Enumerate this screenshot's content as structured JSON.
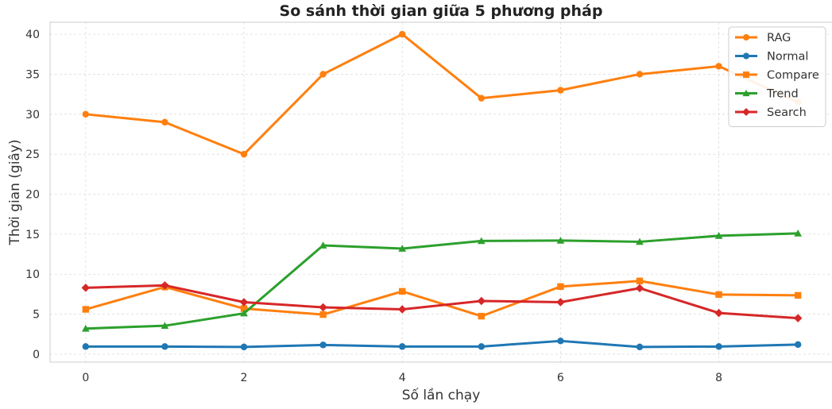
{
  "chart_data": {
    "type": "line",
    "title": "So sánh thời gian giữa 5 phương pháp",
    "xlabel": "Số lần chạy",
    "ylabel": "Thời gian (giây)",
    "x": [
      0,
      1,
      2,
      3,
      4,
      5,
      6,
      7,
      8,
      9
    ],
    "xlim": [
      -0.45,
      9.45
    ],
    "ylim": [
      -1,
      41.5
    ],
    "xticks": [
      0,
      2,
      4,
      6,
      8
    ],
    "xtick_labels": [
      "0",
      "2",
      "4",
      "6",
      "8"
    ],
    "yticks": [
      0,
      5,
      10,
      15,
      20,
      25,
      30,
      35,
      40
    ],
    "ytick_labels": [
      "0",
      "5",
      "10",
      "15",
      "20",
      "25",
      "30",
      "35",
      "40"
    ],
    "grid": true,
    "legend_position": "top-right",
    "series": [
      {
        "name": "RAG",
        "color": "#ff7f0e",
        "marker": "circle",
        "values": [
          30,
          29,
          25,
          35,
          40,
          32,
          33,
          35,
          36,
          31.5
        ]
      },
      {
        "name": "Normal",
        "color": "#1f77b4",
        "marker": "circle",
        "values": [
          0.95,
          0.95,
          0.9,
          1.15,
          0.95,
          0.95,
          1.65,
          0.9,
          0.95,
          1.2
        ]
      },
      {
        "name": "Compare",
        "color": "#ff7f0e",
        "marker": "square",
        "values": [
          5.6,
          8.4,
          5.7,
          4.95,
          7.85,
          4.75,
          8.45,
          9.15,
          7.45,
          7.35
        ]
      },
      {
        "name": "Trend",
        "color": "#2ca02c",
        "marker": "triangle",
        "values": [
          3.2,
          3.55,
          5.1,
          13.6,
          13.2,
          14.15,
          14.2,
          14.05,
          14.8,
          15.1
        ]
      },
      {
        "name": "Search",
        "color": "#d62728",
        "marker": "diamond",
        "values": [
          8.3,
          8.6,
          6.5,
          5.85,
          5.6,
          6.65,
          6.5,
          8.25,
          5.15,
          4.5
        ]
      }
    ]
  }
}
